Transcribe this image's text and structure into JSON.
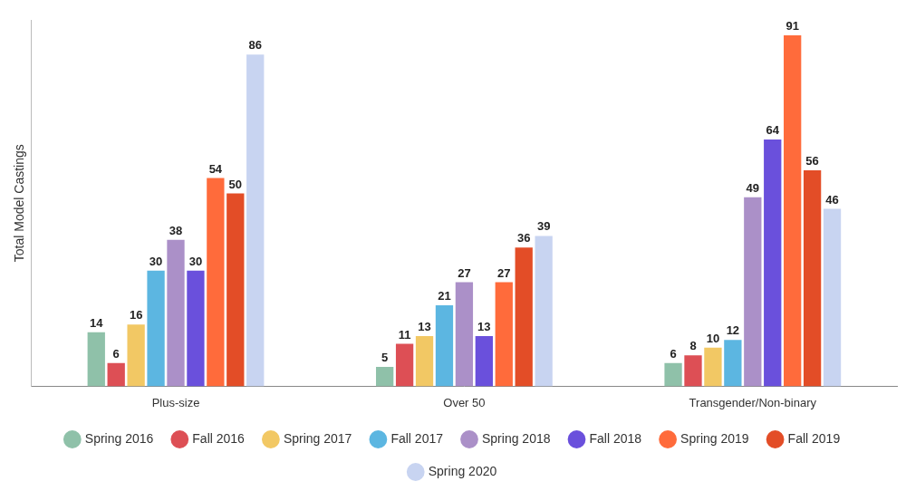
{
  "chart_data": {
    "type": "bar",
    "y_label": "Total Model Castings",
    "categories": [
      "Plus-size",
      "Over 50",
      "Transgender/Non-binary"
    ],
    "series": [
      {
        "name": "Spring 2016",
        "color": "#8fc1a9",
        "values": [
          14,
          5,
          6
        ]
      },
      {
        "name": "Fall 2016",
        "color": "#dd4f55",
        "values": [
          6,
          11,
          8
        ]
      },
      {
        "name": "Spring 2017",
        "color": "#f2c864",
        "values": [
          16,
          13,
          10
        ]
      },
      {
        "name": "Fall 2017",
        "color": "#5cb6e1",
        "values": [
          30,
          21,
          12
        ]
      },
      {
        "name": "Spring 2018",
        "color": "#ab90c8",
        "values": [
          38,
          27,
          49
        ]
      },
      {
        "name": "Fall 2018",
        "color": "#6a50dc",
        "values": [
          30,
          13,
          64
        ]
      },
      {
        "name": "Spring 2019",
        "color": "#ff6b3b",
        "values": [
          54,
          27,
          91
        ]
      },
      {
        "name": "Fall 2019",
        "color": "#e34d27",
        "values": [
          50,
          36,
          56
        ]
      },
      {
        "name": "Spring 2020",
        "color": "#c8d4f1",
        "values": [
          86,
          39,
          46
        ]
      }
    ],
    "ylim": [
      0,
      95
    ],
    "tick_labels": "x",
    "grid": false,
    "legend": "bottom",
    "data_labels": true
  }
}
